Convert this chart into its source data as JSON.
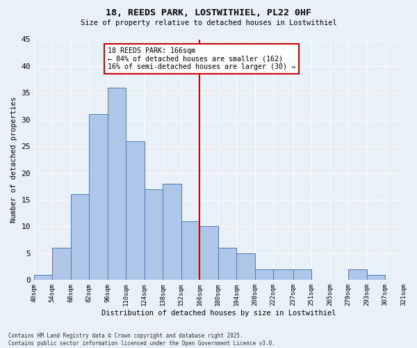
{
  "title1": "18, REEDS PARK, LOSTWITHIEL, PL22 0HF",
  "title2": "Size of property relative to detached houses in Lostwithiel",
  "xlabel": "Distribution of detached houses by size in Lostwithiel",
  "ylabel": "Number of detached properties",
  "bar_edges": [
    40,
    54,
    68,
    82,
    96,
    110,
    124,
    138,
    152,
    166,
    180,
    194,
    208,
    222,
    237,
    251,
    265,
    279,
    293,
    307,
    321
  ],
  "bar_heights": [
    1,
    6,
    16,
    31,
    36,
    26,
    17,
    18,
    11,
    10,
    6,
    5,
    2,
    2,
    2,
    0,
    0,
    2,
    1,
    0
  ],
  "bar_color": "#aec6e8",
  "bar_edge_color": "#4c78b0",
  "vline_x": 166,
  "vline_color": "#cc0000",
  "annotation_text": "18 REEDS PARK: 166sqm\n← 84% of detached houses are smaller (162)\n16% of semi-detached houses are larger (30) →",
  "annotation_box_color": "#ffffff",
  "annotation_box_edgecolor": "#cc0000",
  "ylim": [
    0,
    45
  ],
  "yticks": [
    0,
    5,
    10,
    15,
    20,
    25,
    30,
    35,
    40,
    45
  ],
  "bg_color": "#e8f0f8",
  "grid_color": "#ffffff",
  "footer_line1": "Contains HM Land Registry data © Crown copyright and database right 2025.",
  "footer_line2": "Contains public sector information licensed under the Open Government Licence v3.0."
}
